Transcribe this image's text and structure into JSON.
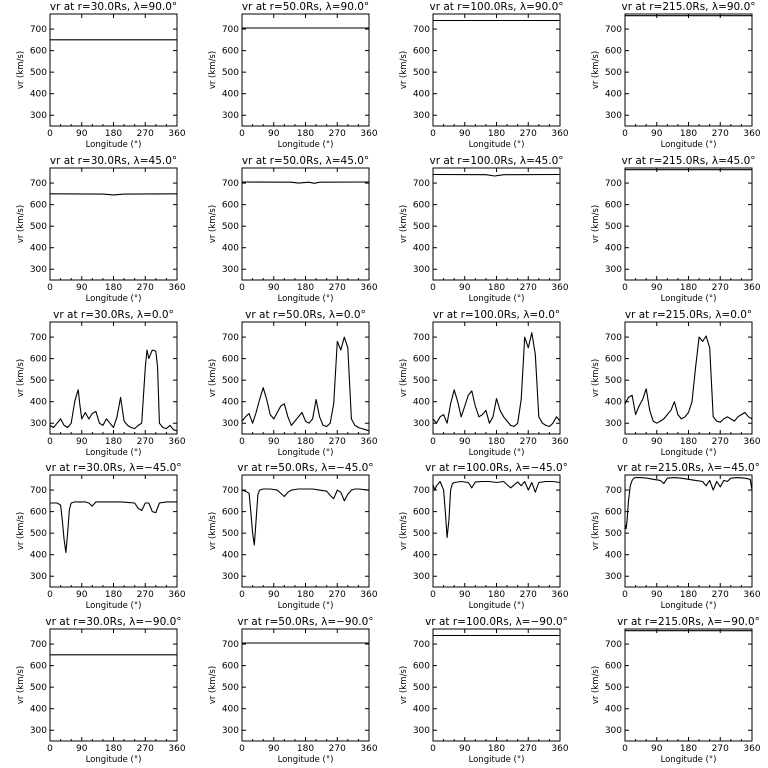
{
  "chart_data": {
    "type": "line",
    "xlabel": "Longitude (°)",
    "ylabel": "vr (km/s)",
    "xlim": [
      0,
      360
    ],
    "ylim": [
      250,
      770
    ],
    "xticks": [
      0,
      90,
      180,
      270,
      360
    ],
    "yticks": [
      300,
      400,
      500,
      600,
      700
    ],
    "line_color": "#000000",
    "panels": [
      {
        "title": "vr at r=30.0Rs, λ=90.0°",
        "x": [
          0,
          360
        ],
        "y": [
          650,
          650
        ]
      },
      {
        "title": "vr at r=50.0Rs, λ=90.0°",
        "x": [
          0,
          360
        ],
        "y": [
          705,
          705
        ]
      },
      {
        "title": "vr at r=100.0Rs, λ=90.0°",
        "x": [
          0,
          360
        ],
        "y": [
          740,
          740
        ]
      },
      {
        "title": "vr at r=215.0Rs, λ=90.0°",
        "x": [
          0,
          360
        ],
        "y": [
          762,
          762
        ]
      },
      {
        "title": "vr at r=30.0Rs, λ=45.0°",
        "x": [
          0,
          150,
          180,
          210,
          360
        ],
        "y": [
          650,
          649,
          645,
          649,
          650
        ]
      },
      {
        "title": "vr at r=50.0Rs, λ=45.0°",
        "x": [
          0,
          140,
          160,
          190,
          205,
          220,
          360
        ],
        "y": [
          705,
          704,
          700,
          704,
          699,
          704,
          705
        ]
      },
      {
        "title": "vr at r=100.0Rs, λ=45.0°",
        "x": [
          0,
          150,
          175,
          200,
          360
        ],
        "y": [
          740,
          739,
          733,
          739,
          740
        ]
      },
      {
        "title": "vr at r=215.0Rs, λ=45.0°",
        "x": [
          0,
          360
        ],
        "y": [
          762,
          762
        ]
      },
      {
        "title": "vr at r=30.0Rs, λ=0.0°",
        "x": [
          0,
          10,
          20,
          30,
          40,
          50,
          60,
          70,
          75,
          80,
          85,
          90,
          100,
          110,
          120,
          130,
          140,
          150,
          160,
          170,
          180,
          190,
          200,
          210,
          220,
          230,
          240,
          250,
          260,
          270,
          275,
          280,
          285,
          290,
          300,
          305,
          310,
          320,
          330,
          340,
          350,
          360
        ],
        "y": [
          290,
          280,
          300,
          320,
          290,
          280,
          300,
          400,
          430,
          455,
          380,
          320,
          350,
          320,
          345,
          355,
          300,
          290,
          320,
          300,
          280,
          330,
          420,
          310,
          290,
          280,
          275,
          290,
          300,
          560,
          640,
          600,
          620,
          640,
          635,
          560,
          300,
          280,
          275,
          290,
          270,
          265
        ]
      },
      {
        "title": "vr at r=50.0Rs, λ=0.0°",
        "x": [
          0,
          10,
          20,
          30,
          40,
          50,
          60,
          70,
          80,
          90,
          100,
          110,
          120,
          130,
          140,
          150,
          160,
          170,
          180,
          190,
          200,
          210,
          220,
          230,
          240,
          250,
          260,
          270,
          280,
          290,
          300,
          310,
          320,
          330,
          340,
          350,
          360
        ],
        "y": [
          310,
          330,
          345,
          300,
          350,
          410,
          465,
          410,
          340,
          320,
          350,
          380,
          390,
          330,
          290,
          310,
          330,
          350,
          310,
          300,
          320,
          410,
          330,
          290,
          285,
          300,
          390,
          680,
          640,
          700,
          650,
          320,
          290,
          280,
          275,
          270,
          265
        ]
      },
      {
        "title": "vr at r=100.0Rs, λ=0.0°",
        "x": [
          0,
          10,
          20,
          30,
          40,
          50,
          60,
          70,
          80,
          90,
          100,
          110,
          120,
          130,
          140,
          150,
          160,
          170,
          180,
          190,
          200,
          210,
          220,
          230,
          240,
          250,
          260,
          270,
          280,
          290,
          300,
          310,
          320,
          330,
          340,
          350,
          360
        ],
        "y": [
          320,
          300,
          330,
          340,
          300,
          390,
          455,
          400,
          330,
          380,
          430,
          450,
          380,
          330,
          340,
          360,
          300,
          330,
          415,
          360,
          330,
          310,
          290,
          285,
          300,
          410,
          700,
          650,
          720,
          620,
          330,
          300,
          290,
          285,
          300,
          330,
          310
        ]
      },
      {
        "title": "vr at r=215.0Rs, λ=0.0°",
        "x": [
          0,
          10,
          20,
          30,
          40,
          50,
          60,
          70,
          80,
          90,
          100,
          110,
          120,
          130,
          140,
          150,
          160,
          170,
          180,
          190,
          200,
          210,
          220,
          230,
          240,
          250,
          260,
          270,
          280,
          290,
          300,
          310,
          320,
          330,
          340,
          350,
          360
        ],
        "y": [
          390,
          420,
          430,
          340,
          380,
          410,
          460,
          360,
          310,
          300,
          310,
          320,
          340,
          360,
          400,
          340,
          320,
          330,
          350,
          400,
          560,
          700,
          680,
          705,
          650,
          330,
          310,
          305,
          320,
          330,
          320,
          310,
          330,
          340,
          350,
          330,
          320
        ]
      },
      {
        "title": "vr at r=30.0Rs, λ=−45.0°",
        "x": [
          0,
          20,
          30,
          35,
          40,
          45,
          50,
          55,
          60,
          70,
          100,
          110,
          120,
          130,
          200,
          240,
          250,
          260,
          270,
          280,
          290,
          300,
          310,
          330,
          360
        ],
        "y": [
          640,
          640,
          630,
          560,
          470,
          410,
          500,
          610,
          640,
          645,
          645,
          640,
          625,
          645,
          645,
          640,
          615,
          605,
          640,
          640,
          600,
          595,
          640,
          645,
          645
        ]
      },
      {
        "title": "vr at r=50.0Rs, λ=−45.0°",
        "x": [
          0,
          10,
          20,
          25,
          30,
          35,
          40,
          45,
          50,
          60,
          80,
          100,
          120,
          130,
          140,
          160,
          200,
          220,
          240,
          250,
          260,
          270,
          280,
          290,
          300,
          310,
          320,
          330,
          360
        ],
        "y": [
          700,
          695,
          685,
          600,
          500,
          445,
          560,
          680,
          700,
          705,
          705,
          700,
          670,
          690,
          700,
          705,
          705,
          700,
          695,
          675,
          660,
          700,
          690,
          650,
          680,
          700,
          705,
          705,
          700
        ]
      },
      {
        "title": "vr at r=100.0Rs, λ=−45.0°",
        "x": [
          0,
          5,
          10,
          20,
          30,
          35,
          40,
          45,
          50,
          55,
          60,
          80,
          100,
          110,
          120,
          140,
          160,
          180,
          200,
          220,
          240,
          250,
          260,
          270,
          280,
          290,
          300,
          320,
          340,
          360
        ],
        "y": [
          725,
          700,
          720,
          740,
          700,
          600,
          480,
          560,
          700,
          730,
          735,
          740,
          735,
          710,
          738,
          740,
          740,
          735,
          740,
          710,
          738,
          720,
          740,
          700,
          735,
          690,
          735,
          740,
          740,
          735
        ]
      },
      {
        "title": "vr at r=215.0Rs, λ=−45.0°",
        "x": [
          0,
          3,
          6,
          10,
          15,
          20,
          25,
          30,
          40,
          60,
          80,
          100,
          110,
          120,
          140,
          160,
          180,
          200,
          220,
          230,
          240,
          250,
          260,
          270,
          280,
          290,
          300,
          320,
          340,
          355,
          360
        ],
        "y": [
          540,
          520,
          560,
          650,
          720,
          745,
          755,
          758,
          758,
          756,
          750,
          745,
          730,
          755,
          758,
          755,
          750,
          745,
          740,
          720,
          745,
          700,
          740,
          715,
          745,
          740,
          755,
          758,
          755,
          750,
          700
        ]
      },
      {
        "title": "vr at r=30.0Rs, λ=−90.0°",
        "x": [
          0,
          360
        ],
        "y": [
          650,
          650
        ]
      },
      {
        "title": "vr at r=50.0Rs, λ=−90.0°",
        "x": [
          0,
          360
        ],
        "y": [
          705,
          705
        ]
      },
      {
        "title": "vr at r=100.0Rs, λ=−90.0°",
        "x": [
          0,
          360
        ],
        "y": [
          740,
          740
        ]
      },
      {
        "title": "vr at r=215.0Rs, λ=−90.0°",
        "x": [
          0,
          360
        ],
        "y": [
          762,
          762
        ]
      }
    ]
  }
}
